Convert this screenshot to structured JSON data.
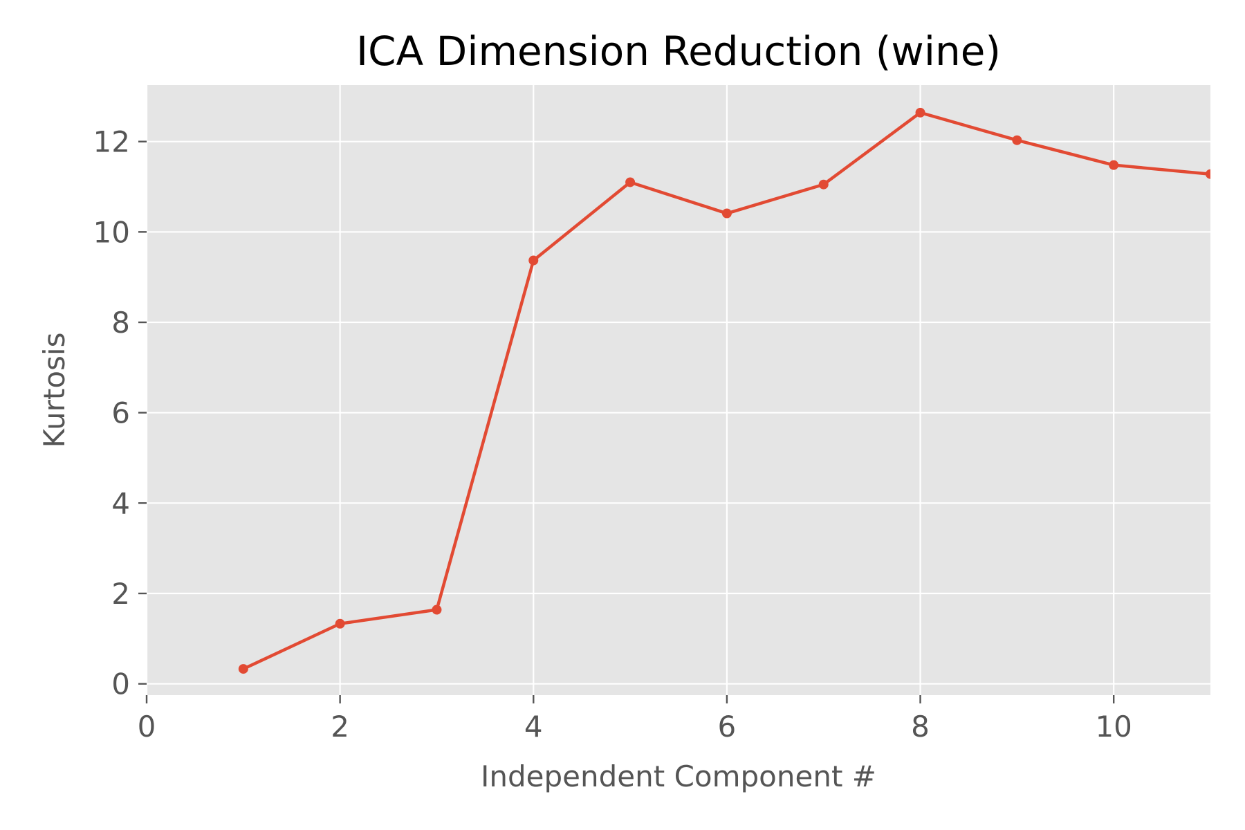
{
  "chart_data": {
    "type": "line",
    "title": "ICA Dimension Reduction (wine)",
    "xlabel": "Independent Component #",
    "ylabel": "Kurtosis",
    "xlim": [
      0,
      11
    ],
    "ylim": [
      -0.25,
      13.25
    ],
    "xticks": [
      0,
      2,
      4,
      6,
      8,
      10
    ],
    "yticks": [
      0,
      2,
      4,
      6,
      8,
      10,
      12
    ],
    "grid": true,
    "series": [
      {
        "x": [
          1,
          2,
          3,
          4,
          5,
          6,
          7,
          8,
          9,
          10,
          11
        ],
        "y": [
          0.33,
          1.33,
          1.64,
          9.37,
          11.1,
          10.41,
          11.05,
          12.64,
          12.03,
          11.48,
          11.28
        ]
      }
    ]
  },
  "colors": {
    "plot_background": "#e5e5e5",
    "grid": "#ffffff",
    "line": "#e24a33",
    "text": "#555555"
  }
}
